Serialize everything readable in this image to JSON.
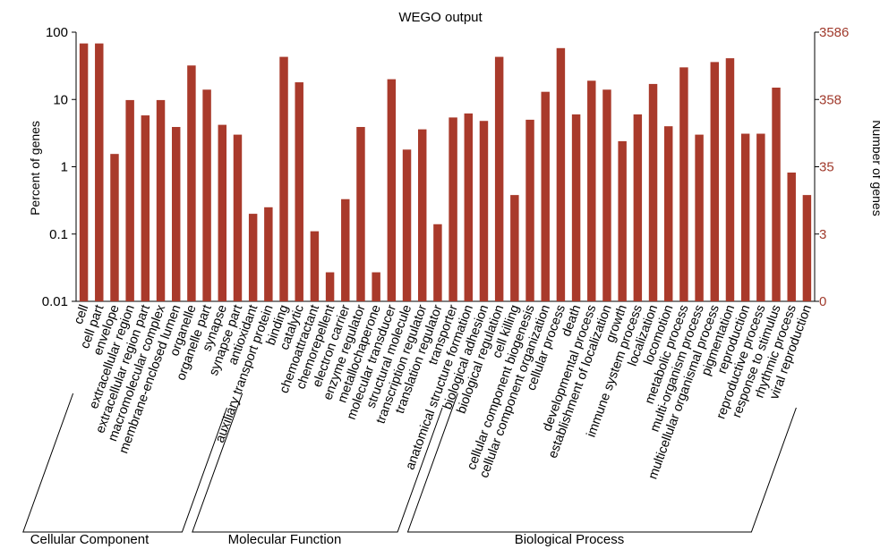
{
  "chart_data": {
    "type": "bar",
    "title": "WEGO output",
    "ylabel_left": "Percent of genes",
    "ylabel_right": "Number of genes",
    "yscale": "log",
    "ylim": [
      0.01,
      100
    ],
    "yticks_left": [
      "100",
      "10",
      "1",
      "0.1",
      "0.01"
    ],
    "yticks_right": [
      "3586",
      "358",
      "35",
      "3",
      "0"
    ],
    "bar_color": "#a93a2b",
    "right_tick_color": "#a03a2c",
    "categories": [
      "cell",
      "cell part",
      "envelope",
      "extracellular region",
      "extracellular region part",
      "macromolecular complex",
      "membrane-enclosed lumen",
      "organelle",
      "organelle part",
      "synapse",
      "synapse part",
      "antioxidant",
      "auxiliary transport protein",
      "binding",
      "catalytic",
      "chemoattractant",
      "chemorepellent",
      "electron carrier",
      "enzyme regulator",
      "metallochaperone",
      "molecular transducer",
      "structural molecule",
      "transcription regulator",
      "translation regulator",
      "transporter",
      "anatomical structure formation",
      "biological adhesion",
      "biological regulation",
      "cell killing",
      "cellular component biogenesis",
      "cellular component organization",
      "cellular process",
      "death",
      "developmental process",
      "establishment of localization",
      "growth",
      "immune system process",
      "localization",
      "locomotion",
      "metabolic process",
      "multi-organism process",
      "multicellular organismal process",
      "pigmentation",
      "reproduction",
      "reproductive process",
      "response to stimulus",
      "rhythmic process",
      "viral reproduction"
    ],
    "values": [
      68,
      68,
      1.55,
      9.8,
      5.8,
      9.8,
      3.9,
      32,
      14,
      4.2,
      3.0,
      0.2,
      0.25,
      43,
      18,
      0.11,
      0.027,
      0.33,
      3.9,
      0.027,
      20,
      1.8,
      3.6,
      0.14,
      5.4,
      6.2,
      4.8,
      43,
      0.38,
      5.0,
      13,
      58,
      6.0,
      19,
      14,
      2.4,
      6.0,
      17,
      4.0,
      30,
      3.0,
      36,
      41,
      3.1,
      3.1,
      15,
      0.82,
      0.38
    ],
    "groups": [
      {
        "name": "Cellular Component",
        "start": 0,
        "end": 10
      },
      {
        "name": "Molecular Function",
        "start": 11,
        "end": 24
      },
      {
        "name": "Biological Process",
        "start": 25,
        "end": 47
      }
    ],
    "grid": false,
    "legend": "none"
  }
}
